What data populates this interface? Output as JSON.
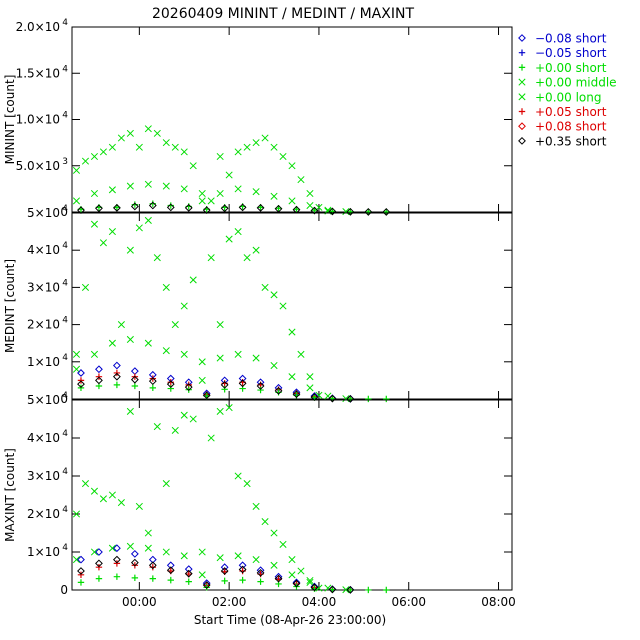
{
  "chart_data": {
    "type": "scatter",
    "title": "20260409  MININT  /  MEDINT  /  MAXINT",
    "xlabel": "Start Time (08-Apr-26 23:00:00)",
    "xlim": [
      -0.5,
      9.3
    ],
    "x_ticks": [
      1,
      3,
      5,
      7,
      9
    ],
    "x_tick_labels": [
      "00:00",
      "02:00",
      "04:00",
      "06:00",
      "08:00"
    ],
    "legend": {
      "position": "top-right",
      "entries": [
        {
          "symbol": "diamond",
          "label": "−0.08 short",
          "color": "#0000cc"
        },
        {
          "symbol": "plus",
          "label": "−0.05 short",
          "color": "#0000cc"
        },
        {
          "symbol": "plus",
          "label": "+0.00 short",
          "color": "#00dd00"
        },
        {
          "symbol": "cross",
          "label": "+0.00 middle",
          "color": "#00dd00"
        },
        {
          "symbol": "cross",
          "label": "+0.00 long",
          "color": "#00dd00"
        },
        {
          "symbol": "plus",
          "label": "+0.05 short",
          "color": "#dd0000"
        },
        {
          "symbol": "diamond",
          "label": "+0.08 short",
          "color": "#dd0000"
        },
        {
          "symbol": "diamond",
          "label": "+0.35 short",
          "color": "#000000"
        }
      ]
    },
    "panels": [
      {
        "ylabel": "MININT [count]",
        "ylim": [
          0,
          20000
        ],
        "y_ticks": [
          {
            "value": 0,
            "mant": "0",
            "exp": ""
          },
          {
            "value": 5000,
            "mant": "5.0×10",
            "exp": "3"
          },
          {
            "value": 10000,
            "mant": "1.0×10",
            "exp": "4"
          },
          {
            "value": 15000,
            "mant": "1.5×10",
            "exp": "4"
          },
          {
            "value": 20000,
            "mant": "2.0×10",
            "exp": "4"
          }
        ],
        "series": [
          {
            "name": "+0.00 long",
            "marker": "cross",
            "color": "#00dd00",
            "x": [
              -0.4,
              -0.2,
              0.0,
              0.2,
              0.4,
              0.6,
              0.8,
              1.0,
              1.2,
              1.4,
              1.6,
              1.8,
              2.0,
              2.2,
              2.4,
              2.6,
              2.8,
              3.0,
              3.2,
              3.4,
              3.6,
              3.8,
              4.0,
              4.2,
              4.4,
              4.6,
              4.8,
              5.0,
              5.2
            ],
            "y": [
              4500,
              5500,
              6000,
              6500,
              7000,
              8000,
              8500,
              7000,
              9000,
              8500,
              7500,
              7000,
              6500,
              5000,
              2000,
              1200,
              6000,
              4000,
              6500,
              7000,
              7500,
              8000,
              7000,
              6000,
              5000,
              3500,
              2000,
              500,
              100
            ]
          },
          {
            "name": "+0.00 middle",
            "marker": "cross",
            "color": "#00dd00",
            "x": [
              -0.4,
              0.0,
              0.4,
              0.8,
              1.2,
              1.6,
              2.0,
              2.4,
              2.8,
              3.2,
              3.6,
              4.0,
              4.4,
              4.8,
              5.2,
              5.6
            ],
            "y": [
              1200,
              2000,
              2400,
              2800,
              3000,
              2800,
              2500,
              1200,
              2000,
              2500,
              2200,
              1700,
              1200,
              700,
              200,
              50
            ]
          },
          {
            "name": "+0.00 short",
            "marker": "plus",
            "color": "#00dd00",
            "x": [
              -0.3,
              0.1,
              0.5,
              0.9,
              1.3,
              1.7,
              2.1,
              2.5,
              2.9,
              3.3,
              3.7,
              4.1,
              4.5,
              4.9,
              5.3,
              5.7,
              6.1,
              6.5
            ],
            "y": [
              300,
              500,
              500,
              800,
              900,
              700,
              600,
              300,
              500,
              600,
              500,
              400,
              300,
              200,
              80,
              30,
              20,
              10
            ]
          },
          {
            "name": "+0.35 short",
            "marker": "diamond",
            "color": "#000000",
            "x": [
              -0.3,
              0.1,
              0.5,
              0.9,
              1.3,
              1.7,
              2.1,
              2.5,
              2.9,
              3.3,
              3.7,
              4.1,
              4.5,
              4.9,
              5.3,
              5.7,
              6.1,
              6.5
            ],
            "y": [
              200,
              400,
              450,
              600,
              700,
              500,
              450,
              200,
              400,
              500,
              450,
              350,
              250,
              150,
              60,
              20,
              10,
              5
            ]
          }
        ]
      },
      {
        "ylabel": "MEDINT [count]",
        "ylim": [
          0,
          50000
        ],
        "y_ticks": [
          {
            "value": 0,
            "mant": "0",
            "exp": ""
          },
          {
            "value": 10000,
            "mant": "1×10",
            "exp": "4"
          },
          {
            "value": 20000,
            "mant": "2×10",
            "exp": "4"
          },
          {
            "value": 30000,
            "mant": "3×10",
            "exp": "4"
          },
          {
            "value": 40000,
            "mant": "4×10",
            "exp": "4"
          },
          {
            "value": 50000,
            "mant": "5×10",
            "exp": "4"
          }
        ],
        "series": [
          {
            "name": "+0.00 long",
            "marker": "cross",
            "color": "#00dd00",
            "x": [
              -0.4,
              -0.2,
              0.0,
              0.2,
              0.4,
              0.6,
              0.8,
              1.0,
              1.2,
              1.4,
              1.6,
              1.8,
              2.0,
              2.2,
              2.4,
              2.6,
              2.8,
              3.0,
              3.2,
              3.4,
              3.6,
              3.8,
              4.0,
              4.2,
              4.4,
              4.6,
              4.8,
              5.0
            ],
            "y": [
              12000,
              30000,
              47000,
              42000,
              45000,
              20000,
              40000,
              46000,
              48000,
              38000,
              30000,
              20000,
              25000,
              32000,
              10000,
              38000,
              20000,
              43000,
              45000,
              38000,
              40000,
              30000,
              28000,
              25000,
              18000,
              12000,
              6000,
              1000
            ]
          },
          {
            "name": "+0.00 middle",
            "marker": "cross",
            "color": "#00dd00",
            "x": [
              -0.4,
              0.0,
              0.4,
              0.8,
              1.2,
              1.6,
              2.0,
              2.4,
              2.8,
              3.2,
              3.6,
              4.0,
              4.4,
              4.8,
              5.2,
              5.6
            ],
            "y": [
              8000,
              12000,
              15000,
              16000,
              15000,
              13000,
              12000,
              5000,
              11000,
              12000,
              11000,
              9000,
              6000,
              3000,
              800,
              100
            ]
          },
          {
            "name": "-0.08 short",
            "marker": "diamond",
            "color": "#0000cc",
            "x": [
              -0.3,
              0.1,
              0.5,
              0.9,
              1.3,
              1.7,
              2.1,
              2.5,
              2.9,
              3.3,
              3.7,
              4.1,
              4.5,
              4.9,
              5.3,
              5.7
            ],
            "y": [
              7000,
              8000,
              9000,
              7500,
              6500,
              5500,
              4500,
              1500,
              5000,
              5500,
              4500,
              3000,
              1800,
              800,
              200,
              50
            ]
          },
          {
            "name": "+0.05 short",
            "marker": "plus",
            "color": "#dd0000",
            "x": [
              -0.3,
              0.1,
              0.5,
              0.9,
              1.3,
              1.7,
              2.1,
              2.5,
              2.9,
              3.3,
              3.7,
              4.1,
              4.5,
              4.9,
              5.3,
              5.7
            ],
            "y": [
              5000,
              6000,
              7000,
              6000,
              5500,
              4500,
              3800,
              1200,
              4200,
              4500,
              3800,
              2500,
              1500,
              600,
              150,
              40
            ]
          },
          {
            "name": "+0.00 short",
            "marker": "plus",
            "color": "#00dd00",
            "x": [
              -0.3,
              0.1,
              0.5,
              0.9,
              1.3,
              1.7,
              2.1,
              2.5,
              2.9,
              3.3,
              3.7,
              4.1,
              4.5,
              4.9,
              5.3,
              5.7,
              6.1,
              6.5
            ],
            "y": [
              3000,
              3500,
              3800,
              3500,
              3000,
              2800,
              2500,
              800,
              2600,
              2800,
              2400,
              1800,
              1000,
              400,
              100,
              40,
              20,
              10
            ]
          },
          {
            "name": "+0.35 short",
            "marker": "diamond",
            "color": "#000000",
            "x": [
              -0.3,
              0.1,
              0.5,
              0.9,
              1.3,
              1.7,
              2.1,
              2.5,
              2.9,
              3.3,
              3.7,
              4.1,
              4.5,
              4.9,
              5.3,
              5.7
            ],
            "y": [
              4000,
              5000,
              6000,
              5200,
              4800,
              4000,
              3200,
              1000,
              3800,
              4200,
              3500,
              2200,
              1300,
              500,
              120,
              30
            ]
          }
        ]
      },
      {
        "ylabel": "MAXINT [count]",
        "ylim": [
          0,
          50000
        ],
        "y_ticks": [
          {
            "value": 0,
            "mant": "0",
            "exp": ""
          },
          {
            "value": 10000,
            "mant": "1×10",
            "exp": "4"
          },
          {
            "value": 20000,
            "mant": "2×10",
            "exp": "4"
          },
          {
            "value": 30000,
            "mant": "3×10",
            "exp": "4"
          },
          {
            "value": 40000,
            "mant": "4×10",
            "exp": "4"
          },
          {
            "value": 50000,
            "mant": "5×10",
            "exp": "4"
          }
        ],
        "series": [
          {
            "name": "+0.00 long",
            "marker": "cross",
            "color": "#00dd00",
            "x": [
              -0.4,
              -0.2,
              0.0,
              0.2,
              0.4,
              0.6,
              0.8,
              1.0,
              1.2,
              1.4,
              1.6,
              1.8,
              2.0,
              2.2,
              2.4,
              2.6,
              2.8,
              3.0,
              3.2,
              3.4,
              3.6,
              3.8,
              4.0,
              4.2,
              4.4,
              4.6,
              4.8,
              5.0
            ],
            "y": [
              20000,
              28000,
              26000,
              24000,
              25000,
              23000,
              47000,
              22000,
              15000,
              43000,
              28000,
              42000,
              46000,
              45000,
              10000,
              40000,
              47000,
              48000,
              30000,
              28000,
              22000,
              18000,
              15000,
              12000,
              8000,
              5000,
              2500,
              500
            ]
          },
          {
            "name": "+0.00 middle",
            "marker": "cross",
            "color": "#00dd00",
            "x": [
              -0.4,
              0.0,
              0.4,
              0.8,
              1.2,
              1.6,
              2.0,
              2.4,
              2.8,
              3.2,
              3.6,
              4.0,
              4.4,
              4.8,
              5.2,
              5.6
            ],
            "y": [
              8000,
              10000,
              11000,
              11500,
              11000,
              10000,
              9000,
              4000,
              8500,
              9000,
              8000,
              6500,
              4000,
              2000,
              500,
              80
            ]
          },
          {
            "name": "-0.08 short",
            "marker": "diamond",
            "color": "#0000cc",
            "x": [
              -0.3,
              0.1,
              0.5,
              0.9,
              1.3,
              1.7,
              2.1,
              2.5,
              2.9,
              3.3,
              3.7,
              4.1,
              4.5,
              4.9,
              5.3,
              5.7
            ],
            "y": [
              8000,
              10000,
              11000,
              9500,
              8000,
              6500,
              5500,
              1800,
              6000,
              6500,
              5200,
              3500,
              2000,
              900,
              200,
              50
            ]
          },
          {
            "name": "+0.05 short",
            "marker": "plus",
            "color": "#dd0000",
            "x": [
              -0.3,
              0.1,
              0.5,
              0.9,
              1.3,
              1.7,
              2.1,
              2.5,
              2.9,
              3.3,
              3.7,
              4.1,
              4.5,
              4.9,
              5.3,
              5.7
            ],
            "y": [
              4000,
              6000,
              7000,
              6500,
              6000,
              5000,
              4200,
              1200,
              4800,
              5000,
              4200,
              2800,
              1600,
              700,
              150,
              30
            ]
          },
          {
            "name": "+0.00 short",
            "marker": "plus",
            "color": "#00dd00",
            "x": [
              -0.3,
              0.1,
              0.5,
              0.9,
              1.3,
              1.7,
              2.1,
              2.5,
              2.9,
              3.3,
              3.7,
              4.1,
              4.5,
              4.9,
              5.3,
              5.7,
              6.1,
              6.5
            ],
            "y": [
              2000,
              3000,
              3500,
              3200,
              3000,
              2600,
              2200,
              700,
              2400,
              2600,
              2200,
              1600,
              900,
              350,
              90,
              30,
              15,
              8
            ]
          },
          {
            "name": "+0.35 short",
            "marker": "diamond",
            "color": "#000000",
            "x": [
              -0.3,
              0.1,
              0.5,
              0.9,
              1.3,
              1.7,
              2.1,
              2.5,
              2.9,
              3.3,
              3.7,
              4.1,
              4.5,
              4.9,
              5.3,
              5.7
            ],
            "y": [
              5000,
              7000,
              8000,
              7200,
              6500,
              5200,
              4300,
              1300,
              5000,
              5400,
              4500,
              3000,
              1700,
              700,
              150,
              30
            ]
          }
        ]
      }
    ]
  }
}
